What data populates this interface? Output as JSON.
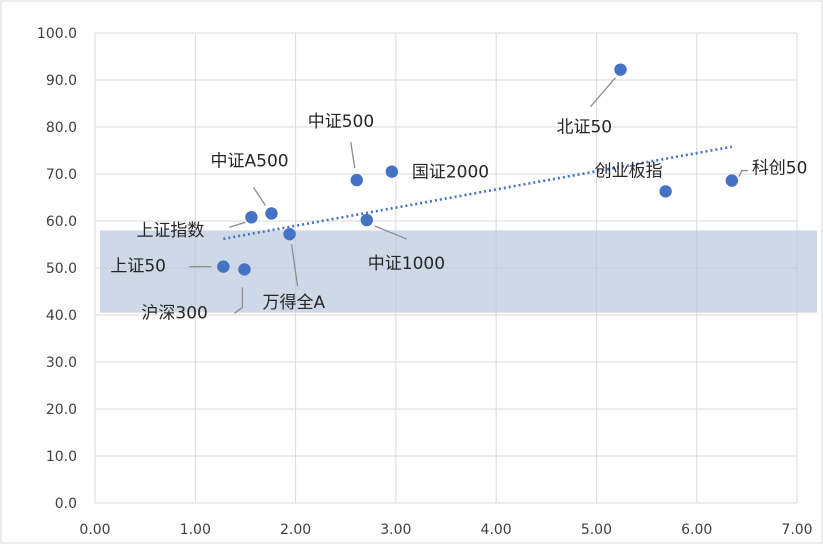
{
  "chart_data": {
    "type": "scatter",
    "xlim": [
      0,
      7
    ],
    "ylim": [
      0,
      100
    ],
    "x_ticks": [
      "0.00",
      "1.00",
      "2.00",
      "3.00",
      "4.00",
      "5.00",
      "6.00",
      "7.00"
    ],
    "y_ticks": [
      "0.0",
      "10.0",
      "20.0",
      "30.0",
      "40.0",
      "50.0",
      "60.0",
      "70.0",
      "80.0",
      "90.0",
      "100.0"
    ],
    "grid": true,
    "highlight_band": {
      "y_range": [
        40.5,
        58
      ],
      "x_range": [
        0.05,
        7.2
      ],
      "color": "#b4c3d8"
    },
    "trendline": {
      "style": "dotted",
      "color": "#4472c4",
      "from": [
        1.28,
        56.2
      ],
      "to": [
        6.35,
        75.8
      ]
    },
    "point_color": "#4472c4",
    "points": [
      {
        "label": "上证50",
        "x": 1.28,
        "y": 50.3
      },
      {
        "label": "沪深300",
        "x": 1.49,
        "y": 49.7
      },
      {
        "label": "上证指数",
        "x": 1.56,
        "y": 60.8
      },
      {
        "label": "中证A500",
        "x": 1.76,
        "y": 61.6
      },
      {
        "label": "万得全A",
        "x": 1.94,
        "y": 57.2
      },
      {
        "label": "中证500",
        "x": 2.61,
        "y": 68.7
      },
      {
        "label": "中证1000",
        "x": 2.71,
        "y": 60.2
      },
      {
        "label": "国证2000",
        "x": 2.96,
        "y": 70.5
      },
      {
        "label": "北证50",
        "x": 5.24,
        "y": 92.2
      },
      {
        "label": "创业板指",
        "x": 5.69,
        "y": 66.3
      },
      {
        "label": "科创50",
        "x": 6.35,
        "y": 68.6
      }
    ]
  }
}
